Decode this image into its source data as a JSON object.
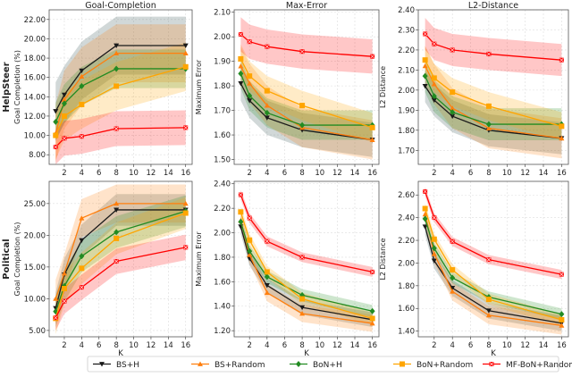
{
  "chart_data": {
    "type": "line",
    "x": [
      1,
      2,
      4,
      8,
      16
    ],
    "xlabel": "K",
    "xticks": [
      2,
      4,
      6,
      8,
      10,
      12,
      14,
      16
    ],
    "grid": true,
    "legend_placement": "bottom",
    "series_styles": [
      {
        "name": "BS+H",
        "color": "#1a1a1a",
        "band": "#2f4f4f",
        "marker": "triangle-down"
      },
      {
        "name": "BS+Random",
        "color": "#ff7f0e",
        "band": "#ff7f0e",
        "marker": "triangle-up"
      },
      {
        "name": "BoN+H",
        "color": "#228b22",
        "band": "#228b22",
        "marker": "diamond"
      },
      {
        "name": "BoN+Random",
        "color": "#ffa500",
        "band": "#ffa500",
        "marker": "square"
      },
      {
        "name": "MF-BoN+Random",
        "color": "#ff0000",
        "band": "#ff0000",
        "marker": "x-square"
      }
    ],
    "row_labels": [
      "HelpSteer",
      "Political"
    ],
    "panels": [
      {
        "row": 0,
        "col": 0,
        "title": "Goal-Completion",
        "ylabel": "Goal Completion (%)",
        "ylim": [
          7.0,
          23.0
        ],
        "yticks": [
          "8.00",
          "10.00",
          "12.00",
          "14.00",
          "16.00",
          "18.00",
          "20.00",
          "22.00"
        ],
        "series": [
          {
            "name": "BS+H",
            "values": [
              12.5,
              14.2,
              16.7,
              19.3,
              19.3
            ],
            "spread": 3.0
          },
          {
            "name": "BS+Random",
            "values": [
              10.2,
              13.7,
              16.1,
              18.5,
              18.5
            ],
            "spread": 3.0
          },
          {
            "name": "BoN+H",
            "values": [
              11.4,
              13.3,
              15.1,
              16.9,
              16.9
            ],
            "spread": 2.0
          },
          {
            "name": "BoN+Random",
            "values": [
              10.0,
              12.0,
              13.2,
              15.1,
              17.1
            ],
            "spread": 2.5
          },
          {
            "name": "MF-BoN+Random",
            "values": [
              8.8,
              9.7,
              9.9,
              10.7,
              10.8
            ],
            "spread": 1.8
          }
        ]
      },
      {
        "row": 0,
        "col": 1,
        "title": "Max-Error",
        "ylabel": "Maximum Error",
        "ylim": [
          1.48,
          2.11
        ],
        "yticks": [
          "1.50",
          "1.60",
          "1.70",
          "1.80",
          "1.90",
          "2.00",
          "2.10"
        ],
        "series": [
          {
            "name": "BS+H",
            "values": [
              1.81,
              1.74,
              1.67,
              1.62,
              1.58
            ],
            "spread": 0.07
          },
          {
            "name": "BS+Random",
            "values": [
              1.88,
              1.81,
              1.72,
              1.63,
              1.58
            ],
            "spread": 0.08
          },
          {
            "name": "BoN+H",
            "values": [
              1.85,
              1.76,
              1.69,
              1.64,
              1.64
            ],
            "spread": 0.06
          },
          {
            "name": "BoN+Random",
            "values": [
              1.91,
              1.84,
              1.78,
              1.72,
              1.63
            ],
            "spread": 0.06
          },
          {
            "name": "MF-BoN+Random",
            "values": [
              2.01,
              1.98,
              1.96,
              1.94,
              1.92
            ],
            "spread": 0.07
          }
        ]
      },
      {
        "row": 0,
        "col": 2,
        "title": "L2-Distance",
        "ylabel": "L2 Distance",
        "ylim": [
          1.63,
          2.4
        ],
        "yticks": [
          "1.70",
          "1.80",
          "1.90",
          "2.00",
          "2.10",
          "2.20",
          "2.30",
          "2.40"
        ],
        "series": [
          {
            "name": "BS+H",
            "values": [
              2.02,
              1.95,
              1.87,
              1.8,
              1.76
            ],
            "spread": 0.08
          },
          {
            "name": "BS+Random",
            "values": [
              2.12,
              2.03,
              1.91,
              1.81,
              1.76
            ],
            "spread": 0.1
          },
          {
            "name": "BoN+H",
            "values": [
              2.07,
              1.97,
              1.89,
              1.83,
              1.83
            ],
            "spread": 0.08
          },
          {
            "name": "BoN+Random",
            "values": [
              2.15,
              2.06,
              1.99,
              1.92,
              1.82
            ],
            "spread": 0.07
          },
          {
            "name": "MF-BoN+Random",
            "values": [
              2.28,
              2.23,
              2.2,
              2.18,
              2.15
            ],
            "spread": 0.08
          }
        ]
      },
      {
        "row": 1,
        "col": 0,
        "title": "",
        "ylabel": "Goal Completion (%)",
        "ylim": [
          4.0,
          28.5
        ],
        "yticks": [
          "5.00",
          "10.00",
          "15.00",
          "20.00",
          "25.00"
        ],
        "series": [
          {
            "name": "BS+H",
            "values": [
              8.5,
              13.8,
              19.2,
              24.0,
              24.0
            ],
            "spread": 2.5
          },
          {
            "name": "BS+Random",
            "values": [
              10.0,
              14.0,
              22.7,
              25.0,
              25.0
            ],
            "spread": 3.0
          },
          {
            "name": "BoN+H",
            "values": [
              8.0,
              12.0,
              16.7,
              20.5,
              23.8
            ],
            "spread": 2.5
          },
          {
            "name": "BoN+Random",
            "values": [
              6.9,
              11.6,
              14.8,
              19.5,
              23.5
            ],
            "spread": 2.5
          },
          {
            "name": "MF-BoN+Random",
            "values": [
              7.0,
              9.6,
              11.8,
              15.9,
              18.1
            ],
            "spread": 2.0
          }
        ]
      },
      {
        "row": 1,
        "col": 1,
        "title": "",
        "ylabel": "Maximum Error",
        "ylim": [
          1.15,
          2.42
        ],
        "yticks": [
          "1.20",
          "1.40",
          "1.60",
          "1.80",
          "2.00",
          "2.20",
          "2.40"
        ],
        "series": [
          {
            "name": "BS+H",
            "values": [
              2.05,
              1.79,
              1.57,
              1.39,
              1.29
            ],
            "spread": 0.06
          },
          {
            "name": "BS+Random",
            "values": [
              2.1,
              1.82,
              1.51,
              1.34,
              1.26
            ],
            "spread": 0.07
          },
          {
            "name": "BoN+H",
            "values": [
              2.09,
              1.85,
              1.64,
              1.49,
              1.36
            ],
            "spread": 0.05
          },
          {
            "name": "BoN+Random",
            "values": [
              2.17,
              1.94,
              1.68,
              1.46,
              1.3
            ],
            "spread": 0.05
          },
          {
            "name": "MF-BoN+Random",
            "values": [
              2.31,
              2.12,
              1.93,
              1.8,
              1.68
            ],
            "spread": 0.04
          }
        ]
      },
      {
        "row": 1,
        "col": 2,
        "title": "",
        "ylabel": "L2 Distance",
        "ylim": [
          1.35,
          2.72
        ],
        "yticks": [
          "1.40",
          "1.60",
          "1.80",
          "2.00",
          "2.20",
          "2.40",
          "2.60"
        ],
        "series": [
          {
            "name": "BS+H",
            "values": [
              2.32,
              2.02,
              1.78,
              1.58,
              1.47
            ],
            "spread": 0.07
          },
          {
            "name": "BS+Random",
            "values": [
              2.43,
              2.08,
              1.75,
              1.54,
              1.45
            ],
            "spread": 0.08
          },
          {
            "name": "BoN+H",
            "values": [
              2.39,
              2.13,
              1.87,
              1.7,
              1.55
            ],
            "spread": 0.05
          },
          {
            "name": "BoN+Random",
            "values": [
              2.48,
              2.21,
              1.94,
              1.68,
              1.5
            ],
            "spread": 0.05
          },
          {
            "name": "MF-BoN+Random",
            "values": [
              2.63,
              2.4,
              2.19,
              2.03,
              1.9
            ],
            "spread": 0.04
          }
        ]
      }
    ]
  }
}
